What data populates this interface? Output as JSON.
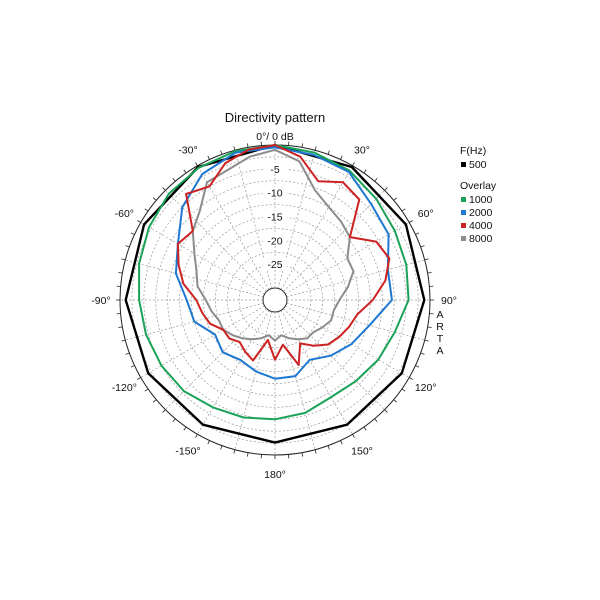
{
  "chart_data": {
    "type": "polar",
    "title": "Directivity pattern",
    "top_label": "0°/ 0 dB",
    "r_unit": "dB",
    "r_range": [
      -30,
      0
    ],
    "r_ticks": [
      -5,
      -10,
      -15,
      -20,
      -25
    ],
    "r_tick_labels": [
      "-5",
      "-10",
      "-15",
      "-20",
      "-25"
    ],
    "angle_ticks": [
      -30,
      30,
      -60,
      60,
      -90,
      90,
      -120,
      120,
      -150,
      150,
      180
    ],
    "angle_tick_labels": [
      "-30°",
      "30°",
      "-60°",
      "60°",
      "-90°",
      "90°",
      "-120°",
      "120°",
      "-150°",
      "150°",
      "180°"
    ],
    "grid": true,
    "side_label": [
      "A",
      "R",
      "T",
      "A"
    ],
    "legend": {
      "placement": "right",
      "header_primary": "F(Hz)",
      "header_overlay": "Overlay"
    },
    "series": [
      {
        "name": "500",
        "color": "#000000",
        "group": "primary",
        "angles": [
          0,
          30,
          60,
          90,
          120,
          150,
          180,
          -150,
          -120,
          -90,
          -60,
          -30
        ],
        "values": [
          0,
          -0.3,
          -0.8,
          -1.2,
          -1.8,
          -2.3,
          -2.6,
          -2.3,
          -1.8,
          -1.2,
          -0.8,
          -0.3
        ]
      },
      {
        "name": "1000",
        "color": "#1aa358",
        "group": "overlay",
        "angles": [
          0,
          15,
          30,
          45,
          60,
          75,
          90,
          105,
          120,
          135,
          150,
          165,
          180,
          -165,
          -150,
          -135,
          -120,
          -105,
          -90,
          -75,
          -60,
          -45,
          -30,
          -15
        ],
        "values": [
          0,
          -0.5,
          -1.2,
          -2.5,
          -3.5,
          -4,
          -4.5,
          -6.5,
          -7.5,
          -8.5,
          -9,
          -8,
          -7.5,
          -7,
          -6.5,
          -5.5,
          -5,
          -4.5,
          -4,
          -3,
          -2,
          -1,
          -0.5,
          -0.2
        ]
      },
      {
        "name": "2000",
        "color": "#1f78d1",
        "group": "overlay",
        "angles": [
          0,
          15,
          30,
          45,
          60,
          75,
          90,
          105,
          120,
          135,
          150,
          165,
          180,
          -165,
          -150,
          -135,
          -120,
          -105,
          -90,
          -75,
          -60,
          -45,
          -30,
          -15
        ],
        "values": [
          -0.5,
          -1,
          -1.5,
          -4,
          -5,
          -8,
          -8,
          -12,
          -14,
          -16,
          -18,
          -16,
          -16,
          -17,
          -18,
          -17,
          -18,
          -15,
          -14,
          -11,
          -9,
          -5,
          -2,
          -0.5
        ]
      },
      {
        "name": "4000",
        "color": "#cc2222",
        "group": "overlay",
        "angles": [
          0,
          10,
          20,
          30,
          40,
          50,
          60,
          70,
          80,
          90,
          100,
          110,
          120,
          130,
          140,
          150,
          160,
          170,
          180,
          -170,
          -160,
          -150,
          -140,
          -130,
          -120,
          -110,
          -100,
          -90,
          -80,
          -70,
          -60,
          -50,
          -40,
          -30,
          -20,
          -10
        ],
        "values": [
          0,
          -2,
          -6,
          -4,
          -5,
          -12,
          -8,
          -7,
          -9,
          -12,
          -15,
          -16,
          -17,
          -18,
          -20,
          -22,
          -18,
          -23,
          -20,
          -24,
          -19,
          -20,
          -21,
          -20,
          -20,
          -18,
          -17,
          -16,
          -13,
          -11,
          -9,
          -10,
          -3.5,
          -5,
          -2,
          -0.5
        ]
      },
      {
        "name": "8000",
        "color": "#8c8c8c",
        "group": "overlay",
        "angles": [
          0,
          10,
          20,
          30,
          40,
          50,
          60,
          70,
          80,
          90,
          100,
          110,
          120,
          130,
          140,
          150,
          160,
          170,
          180,
          -170,
          -160,
          -150,
          -140,
          -130,
          -120,
          -110,
          -100,
          -90,
          -80,
          -70,
          -60,
          -50,
          -40,
          -30,
          -20,
          -10
        ],
        "values": [
          -1,
          -3,
          -8,
          -10,
          -11,
          -12,
          -15,
          -15,
          -17,
          -19,
          -20,
          -20,
          -21,
          -22,
          -22,
          -23,
          -24,
          -25,
          -24,
          -25,
          -24,
          -23,
          -22,
          -21,
          -20,
          -20,
          -19,
          -18,
          -16,
          -15,
          -13,
          -10,
          -8,
          -4,
          -3.5,
          -2
        ]
      }
    ]
  }
}
